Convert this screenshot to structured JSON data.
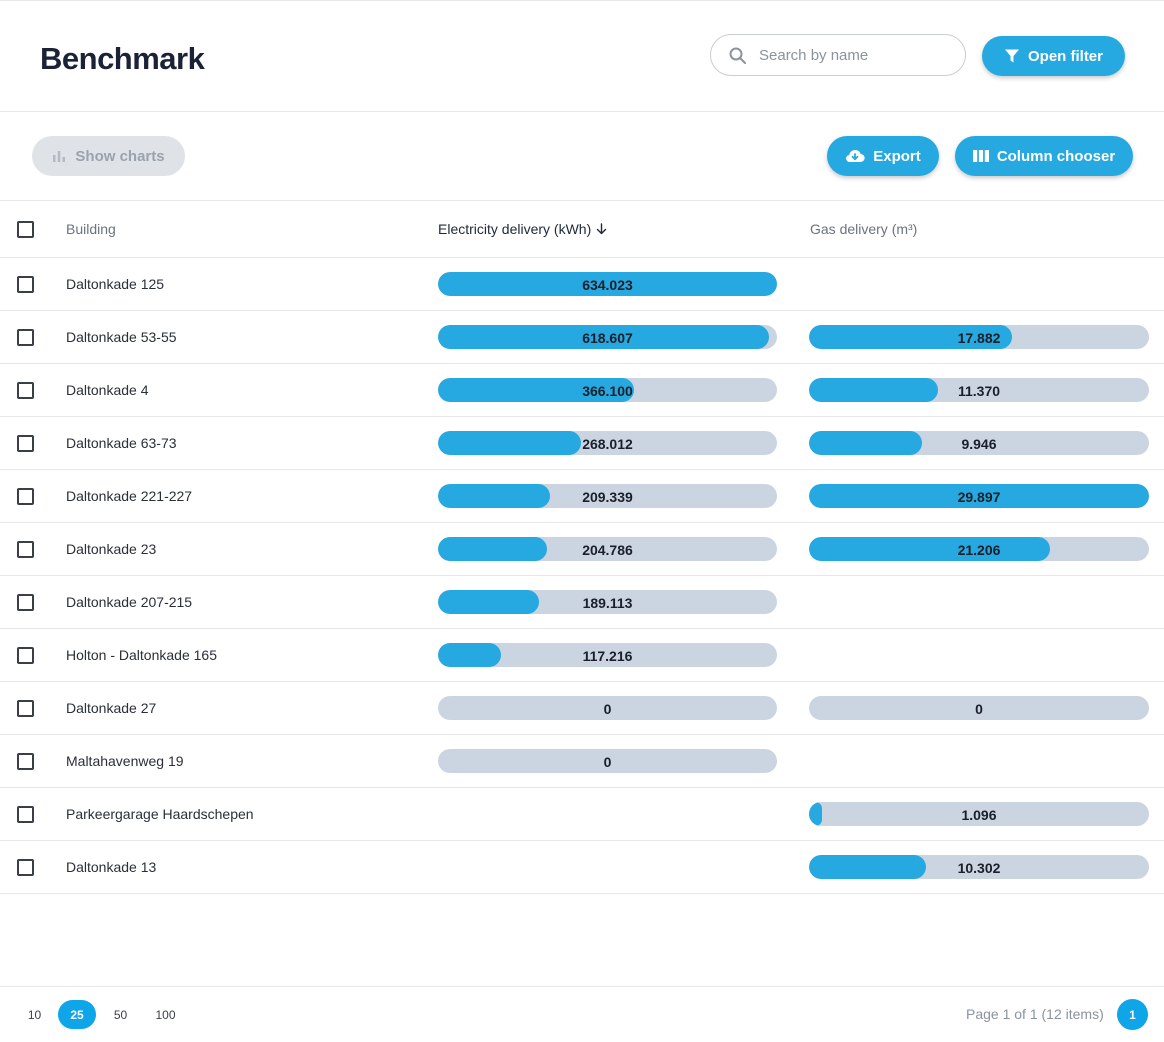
{
  "header": {
    "title": "Benchmark",
    "search_placeholder": "Search by name",
    "search_value": "",
    "open_filter_label": "Open filter"
  },
  "toolbar": {
    "show_charts_label": "Show charts",
    "export_label": "Export",
    "column_chooser_label": "Column chooser"
  },
  "table": {
    "columns": {
      "building": "Building",
      "electricity": "Electricity delivery (kWh)",
      "gas": "Gas delivery (m³)"
    },
    "sort": {
      "column": "electricity",
      "direction": "descending"
    },
    "rows": [
      {
        "building": "Daltonkade 125",
        "electricity": {
          "label": "634.023",
          "fraction": 1.0
        },
        "gas": null
      },
      {
        "building": "Daltonkade 53-55",
        "electricity": {
          "label": "618.607",
          "fraction": 0.975
        },
        "gas": {
          "label": "17.882",
          "fraction": 0.598
        }
      },
      {
        "building": "Daltonkade 4",
        "electricity": {
          "label": "366.100",
          "fraction": 0.577
        },
        "gas": {
          "label": "11.370",
          "fraction": 0.38
        }
      },
      {
        "building": "Daltonkade 63-73",
        "electricity": {
          "label": "268.012",
          "fraction": 0.423
        },
        "gas": {
          "label": "9.946",
          "fraction": 0.333
        }
      },
      {
        "building": "Daltonkade 221-227",
        "electricity": {
          "label": "209.339",
          "fraction": 0.33
        },
        "gas": {
          "label": "29.897",
          "fraction": 1.0
        }
      },
      {
        "building": "Daltonkade 23",
        "electricity": {
          "label": "204.786",
          "fraction": 0.323
        },
        "gas": {
          "label": "21.206",
          "fraction": 0.709
        }
      },
      {
        "building": "Daltonkade 207-215",
        "electricity": {
          "label": "189.113",
          "fraction": 0.298
        },
        "gas": null
      },
      {
        "building": "Holton - Daltonkade 165",
        "electricity": {
          "label": "117.216",
          "fraction": 0.185
        },
        "gas": null
      },
      {
        "building": "Daltonkade 27",
        "electricity": {
          "label": "0",
          "fraction": 0
        },
        "gas": {
          "label": "0",
          "fraction": 0
        }
      },
      {
        "building": "Maltahavenweg 19",
        "electricity": {
          "label": "0",
          "fraction": 0
        },
        "gas": null
      },
      {
        "building": "Parkeergarage Haardschepen",
        "electricity": null,
        "gas": {
          "label": "1.096",
          "fraction": 0.037
        }
      },
      {
        "building": "Daltonkade 13",
        "electricity": null,
        "gas": {
          "label": "10.302",
          "fraction": 0.345
        }
      }
    ]
  },
  "footer": {
    "page_sizes": [
      "10",
      "25",
      "50",
      "100"
    ],
    "active_page_size": "25",
    "page_info": "Page 1 of 1 (12 items)",
    "current_page": "1"
  },
  "colors": {
    "accent": "#26a8e0",
    "bar_track": "#cbd5e1",
    "disabled_button": "#dfe3e8",
    "title": "#1b2236"
  },
  "icons": {
    "search": "search-icon",
    "filter": "funnel-icon",
    "show_charts": "bar-chart-icon",
    "export": "cloud-download-icon",
    "column_chooser": "columns-icon",
    "sort": "arrow-down-icon"
  }
}
